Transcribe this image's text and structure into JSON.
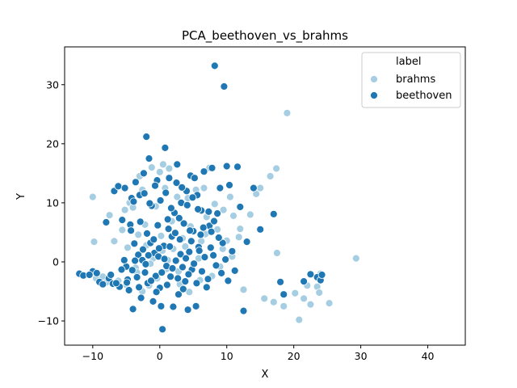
{
  "chart_data": {
    "type": "scatter",
    "title": "PCA_beethoven_vs_brahms",
    "xlabel": "X",
    "ylabel": "Y",
    "xlim": [
      -14.2,
      45.6
    ],
    "ylim": [
      -14.1,
      36.4
    ],
    "xticks": [
      -10,
      0,
      10,
      20,
      30,
      40
    ],
    "yticks": [
      -10,
      0,
      10,
      20,
      30
    ],
    "grid": false,
    "legend": {
      "title": "label",
      "placement": "top-right",
      "entries": [
        "brahms",
        "beethoven"
      ]
    },
    "series": [
      {
        "name": "brahms",
        "color": "#a6cee3",
        "points": [
          [
            -10,
            11
          ],
          [
            -9.8,
            3.4
          ],
          [
            -9.5,
            -2.8
          ],
          [
            -8.5,
            -2.5
          ],
          [
            -7.5,
            7.9
          ],
          [
            -6.8,
            3.5
          ],
          [
            -6.2,
            -3.2
          ],
          [
            -5.6,
            5.4
          ],
          [
            -5.2,
            8.8
          ],
          [
            -4.8,
            2.4
          ],
          [
            -4.5,
            10
          ],
          [
            -4,
            9.2
          ],
          [
            -3.6,
            -1
          ],
          [
            -3.2,
            4.6
          ],
          [
            -3,
            14.5
          ],
          [
            -2.6,
            12.2
          ],
          [
            -2.2,
            6.3
          ],
          [
            -2,
            2.8
          ],
          [
            -1.6,
            -4
          ],
          [
            -1.2,
            16
          ],
          [
            -1,
            0.6
          ],
          [
            -0.6,
            9.4
          ],
          [
            -0.4,
            -2.8
          ],
          [
            0,
            15.2
          ],
          [
            0.2,
            4.4
          ],
          [
            0.5,
            16.5
          ],
          [
            0.8,
            12.5
          ],
          [
            1,
            -1.2
          ],
          [
            1.4,
            15.8
          ],
          [
            1.8,
            6.9
          ],
          [
            2.2,
            4.8
          ],
          [
            2.6,
            11
          ],
          [
            3,
            -3.8
          ],
          [
            3.4,
            4
          ],
          [
            3.8,
            2.6
          ],
          [
            4.2,
            10.8
          ],
          [
            4.6,
            6
          ],
          [
            5,
            -0.5
          ],
          [
            5.4,
            12.2
          ],
          [
            5.8,
            0.6
          ],
          [
            6.2,
            3.5
          ],
          [
            6.6,
            12.5
          ],
          [
            7,
            7.6
          ],
          [
            7.4,
            15.9
          ],
          [
            7.8,
            -2.4
          ],
          [
            8.2,
            9.8
          ],
          [
            8.6,
            5.5
          ],
          [
            9,
            -0.8
          ],
          [
            9.5,
            8.8
          ],
          [
            10,
            3.6
          ],
          [
            10.5,
            11
          ],
          [
            11,
            7.8
          ],
          [
            11.8,
            4.2
          ],
          [
            12.5,
            -4.7
          ],
          [
            13.5,
            8
          ],
          [
            14.4,
            11.5
          ],
          [
            15,
            12.5
          ],
          [
            15.6,
            -6.2
          ],
          [
            16.5,
            14.5
          ],
          [
            17,
            -6.8
          ],
          [
            17.4,
            15.8
          ],
          [
            17.5,
            1.5
          ],
          [
            18.5,
            -7.5
          ],
          [
            19,
            25.2
          ],
          [
            20.2,
            -5.3
          ],
          [
            20.8,
            -9.8
          ],
          [
            21.5,
            -6.2
          ],
          [
            22,
            -4
          ],
          [
            22.5,
            -7.2
          ],
          [
            23.5,
            -4.2
          ],
          [
            23.8,
            -5.2
          ],
          [
            24,
            -2
          ],
          [
            25.3,
            -7
          ],
          [
            29.3,
            0.6
          ],
          [
            -8,
            -3.5
          ],
          [
            -5,
            -3.9
          ],
          [
            -3.4,
            -1.8
          ],
          [
            -2.6,
            -5
          ],
          [
            -1.4,
            -0.3
          ],
          [
            0.4,
            1.9
          ],
          [
            1.2,
            0.3
          ],
          [
            2,
            2.2
          ],
          [
            2.8,
            -1.6
          ],
          [
            3.6,
            6.5
          ],
          [
            4.4,
            -5.1
          ],
          [
            6,
            -3.1
          ],
          [
            6.8,
            4.7
          ],
          [
            9.4,
            2.2
          ],
          [
            10.8,
            0.9
          ],
          [
            12,
            5.6
          ]
        ]
      },
      {
        "name": "beethoven",
        "color": "#1f78b4",
        "points": [
          [
            -12,
            -2
          ],
          [
            -11.4,
            -2.3
          ],
          [
            -10,
            -1.6
          ],
          [
            -9,
            -3.4
          ],
          [
            -8.5,
            -3.8
          ],
          [
            -8,
            6.7
          ],
          [
            -7.6,
            -2.8
          ],
          [
            -7,
            -3.7
          ],
          [
            -6.8,
            12
          ],
          [
            -6.2,
            12.8
          ],
          [
            -6,
            -4.2
          ],
          [
            -5.6,
            7.1
          ],
          [
            -5.2,
            12.5
          ],
          [
            -5,
            -0.8
          ],
          [
            -4.8,
            -3
          ],
          [
            -4.6,
            -4.8
          ],
          [
            -4.4,
            6.3
          ],
          [
            -4.2,
            10.8
          ],
          [
            -4,
            -8
          ],
          [
            -3.8,
            3.1
          ],
          [
            -3.6,
            13.5
          ],
          [
            -3.4,
            -2.6
          ],
          [
            -3.2,
            1.2
          ],
          [
            -3,
            11.3
          ],
          [
            -2.8,
            -6.1
          ],
          [
            -2.6,
            0.3
          ],
          [
            -2.4,
            15
          ],
          [
            -2.2,
            -1.8
          ],
          [
            -2,
            21.2
          ],
          [
            -1.8,
            -3.6
          ],
          [
            -1.6,
            17.5
          ],
          [
            -1.4,
            3.2
          ],
          [
            -1.2,
            9.5
          ],
          [
            -1,
            -6.7
          ],
          [
            -0.8,
            1.5
          ],
          [
            -0.6,
            -2.4
          ],
          [
            -0.4,
            13.8
          ],
          [
            -0.2,
            0.9
          ],
          [
            0,
            -4.4
          ],
          [
            0.2,
            -7.5
          ],
          [
            0.4,
            -11.4
          ],
          [
            0.6,
            2.7
          ],
          [
            0.8,
            19.3
          ],
          [
            1,
            -0.7
          ],
          [
            1.2,
            7.2
          ],
          [
            1.4,
            14.2
          ],
          [
            1.6,
            -2.5
          ],
          [
            1.8,
            4.3
          ],
          [
            2,
            -7.6
          ],
          [
            2.2,
            8.3
          ],
          [
            2.4,
            0.2
          ],
          [
            2.6,
            16.5
          ],
          [
            2.8,
            -5.5
          ],
          [
            3,
            3.8
          ],
          [
            3.2,
            10
          ],
          [
            3.4,
            -0.9
          ],
          [
            3.6,
            6.5
          ],
          [
            3.8,
            -3.3
          ],
          [
            4,
            12
          ],
          [
            4.2,
            -8.1
          ],
          [
            4.4,
            1.7
          ],
          [
            4.6,
            14.6
          ],
          [
            4.8,
            -1.3
          ],
          [
            5,
            5.2
          ],
          [
            5.2,
            14.2
          ],
          [
            5.4,
            -7.5
          ],
          [
            5.6,
            11.3
          ],
          [
            5.8,
            2.5
          ],
          [
            6.2,
            8.7
          ],
          [
            6.6,
            15.3
          ],
          [
            7,
            -4.3
          ],
          [
            7.4,
            6.1
          ],
          [
            7.8,
            15.9
          ],
          [
            8,
            1.1
          ],
          [
            8.2,
            33.2
          ],
          [
            8.6,
            8.2
          ],
          [
            9,
            12.5
          ],
          [
            9.4,
            3.2
          ],
          [
            9.6,
            29.7
          ],
          [
            10,
            16.2
          ],
          [
            10.4,
            13
          ],
          [
            10.8,
            1.8
          ],
          [
            11.2,
            -1.5
          ],
          [
            11.6,
            16.1
          ],
          [
            12,
            9.3
          ],
          [
            12.5,
            -8.3
          ],
          [
            13,
            3.4
          ],
          [
            14,
            12.5
          ],
          [
            15,
            5.5
          ],
          [
            17,
            8.1
          ],
          [
            18,
            -3.4
          ],
          [
            18.5,
            -5.5
          ],
          [
            21.5,
            -3.3
          ],
          [
            22.5,
            -2.1
          ],
          [
            23.5,
            -2.6
          ],
          [
            24,
            -3.1
          ],
          [
            24.2,
            -2.2
          ],
          [
            -10.5,
            -2.2
          ],
          [
            -9.4,
            -1.9
          ],
          [
            -7.3,
            -2.2
          ],
          [
            -6.5,
            -3.6
          ],
          [
            -5.7,
            -1.3
          ],
          [
            -5.3,
            0.3
          ],
          [
            -4.9,
            -3.5
          ],
          [
            -4.1,
            -1.4
          ],
          [
            -3.7,
            0.2
          ],
          [
            -3.1,
            -4.3
          ],
          [
            -2.5,
            2.1
          ],
          [
            -2.1,
            -0.4
          ],
          [
            -1.7,
            1.1
          ],
          [
            -1.3,
            -3.2
          ],
          [
            -0.9,
            3.8
          ],
          [
            -0.5,
            -5.1
          ],
          [
            -0.1,
            2.3
          ],
          [
            0.3,
            -1.8
          ],
          [
            0.7,
            0.5
          ],
          [
            1.1,
            -3.9
          ],
          [
            1.5,
            2.6
          ],
          [
            1.9,
            -1.1
          ],
          [
            2.3,
            4.9
          ],
          [
            2.7,
            -2.8
          ],
          [
            3.1,
            1.3
          ],
          [
            3.5,
            -4.6
          ],
          [
            3.9,
            0.6
          ],
          [
            4.3,
            -2.1
          ],
          [
            4.7,
            3.5
          ],
          [
            5.1,
            -0.3
          ],
          [
            5.5,
            -3.6
          ],
          [
            5.9,
            1.9
          ],
          [
            6.3,
            -1.6
          ],
          [
            6.7,
            0.8
          ],
          [
            7.2,
            -2.9
          ],
          [
            7.6,
            2.4
          ],
          [
            8.4,
            -0.6
          ],
          [
            8.8,
            4.1
          ],
          [
            9.2,
            -1.9
          ],
          [
            9.8,
            0.4
          ],
          [
            10.2,
            -3.2
          ],
          [
            -3.9,
            10.2
          ],
          [
            -2.3,
            11.6
          ],
          [
            -1.5,
            9.9
          ],
          [
            -0.7,
            12.9
          ],
          [
            0.1,
            10.4
          ],
          [
            0.9,
            11.7
          ],
          [
            1.7,
            9.1
          ],
          [
            2.5,
            13.4
          ],
          [
            3.3,
            12.6
          ],
          [
            4.1,
            9.6
          ],
          [
            4.9,
            10.9
          ],
          [
            5.7,
            8.9
          ],
          [
            6.5,
            5.8
          ],
          [
            7.3,
            8.5
          ],
          [
            8.1,
            6.9
          ],
          [
            -4.3,
            5.3
          ],
          [
            -2.9,
            6.8
          ],
          [
            -1.9,
            4.8
          ],
          [
            -0.3,
            6.2
          ],
          [
            1.3,
            5.6
          ],
          [
            2.9,
            7.4
          ],
          [
            4.5,
            5.3
          ],
          [
            6.1,
            4.6
          ],
          [
            7.7,
            5.1
          ]
        ]
      }
    ]
  }
}
